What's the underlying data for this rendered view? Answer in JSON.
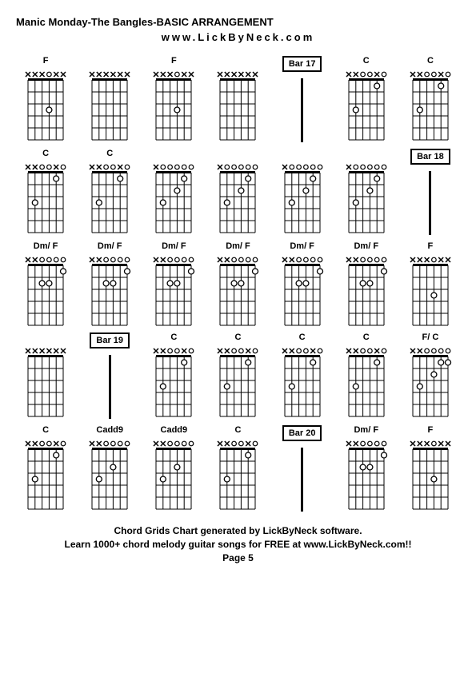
{
  "title": "Manic Monday-The Bangles-BASIC ARRANGEMENT",
  "subtitle": "www.LickByNeck.com",
  "footer_line1": "Chord Grids Chart generated by LickByNeck software.",
  "footer_line2": "Learn 1000+ chord melody guitar songs for FREE at www.LickByNeck.com!!",
  "page": "Page 5",
  "gridCols": 7,
  "diagram": {
    "width": 60,
    "height": 90,
    "strings": 6,
    "frets": 5,
    "topMargin": 14,
    "leftMargin": 8,
    "stringSpacing": 8.8,
    "fretSpacing": 15,
    "markerRadius": 3.5,
    "openRadius": 2.8,
    "strokeColor": "#000000",
    "fillOpen": "#ffffff"
  },
  "cells": [
    {
      "type": "chord",
      "label": "F",
      "markers": [
        "x",
        "x",
        "x",
        [
          1,
          1
        ],
        "x",
        "x"
      ],
      "dots": [
        [
          4,
          3
        ]
      ]
    },
    {
      "type": "chord",
      "label": "",
      "markers": [
        "x",
        "x",
        "x",
        "x",
        "x",
        "x"
      ],
      "dots": []
    },
    {
      "type": "chord",
      "label": "F",
      "markers": [
        "x",
        "x",
        "x",
        [
          1,
          1
        ],
        "x",
        "x"
      ],
      "dots": [
        [
          4,
          3
        ]
      ]
    },
    {
      "type": "chord",
      "label": "",
      "markers": [
        "x",
        "x",
        "x",
        "x",
        "x",
        "x"
      ],
      "dots": []
    },
    {
      "type": "bar",
      "label": "Bar 17"
    },
    {
      "type": "chord",
      "label": "C",
      "markers": [
        "x",
        "x",
        "o",
        "o",
        "x",
        "o"
      ],
      "dots": [
        [
          2,
          3
        ],
        [
          5,
          1
        ]
      ]
    },
    {
      "type": "chord",
      "label": "C",
      "markers": [
        "x",
        "x",
        "o",
        "o",
        "x",
        "o"
      ],
      "dots": [
        [
          2,
          3
        ],
        [
          5,
          1
        ]
      ]
    },
    {
      "type": "chord",
      "label": "C",
      "markers": [
        "x",
        "x",
        "o",
        "o",
        "x",
        "o"
      ],
      "dots": [
        [
          2,
          3
        ],
        [
          5,
          1
        ]
      ]
    },
    {
      "type": "chord",
      "label": "C",
      "markers": [
        "x",
        "x",
        "o",
        "o",
        "x",
        "o"
      ],
      "dots": [
        [
          2,
          3
        ],
        [
          5,
          1
        ]
      ]
    },
    {
      "type": "chord",
      "label": "",
      "markers": [
        "x",
        "o",
        "o",
        "o",
        "o",
        "o"
      ],
      "dots": [
        [
          2,
          3
        ],
        [
          4,
          2
        ],
        [
          5,
          1
        ]
      ]
    },
    {
      "type": "chord",
      "label": "",
      "markers": [
        "x",
        "o",
        "o",
        "o",
        "o",
        "o"
      ],
      "dots": [
        [
          2,
          3
        ],
        [
          4,
          2
        ],
        [
          5,
          1
        ]
      ]
    },
    {
      "type": "chord",
      "label": "",
      "markers": [
        "x",
        "o",
        "o",
        "o",
        "o",
        "o"
      ],
      "dots": [
        [
          2,
          3
        ],
        [
          4,
          2
        ],
        [
          5,
          1
        ]
      ]
    },
    {
      "type": "chord",
      "label": "",
      "markers": [
        "x",
        "o",
        "o",
        "o",
        "o",
        "o"
      ],
      "dots": [
        [
          2,
          3
        ],
        [
          4,
          2
        ],
        [
          5,
          1
        ]
      ]
    },
    {
      "type": "bar",
      "label": "Bar 18"
    },
    {
      "type": "chord",
      "label": "Dm/ F",
      "markers": [
        "x",
        "x",
        "o",
        "o",
        "o",
        "o"
      ],
      "dots": [
        [
          3,
          2
        ],
        [
          4,
          2
        ],
        [
          6,
          1
        ]
      ]
    },
    {
      "type": "chord",
      "label": "Dm/ F",
      "markers": [
        "x",
        "x",
        "o",
        "o",
        "o",
        "o"
      ],
      "dots": [
        [
          3,
          2
        ],
        [
          4,
          2
        ],
        [
          6,
          1
        ]
      ]
    },
    {
      "type": "chord",
      "label": "Dm/ F",
      "markers": [
        "x",
        "x",
        "o",
        "o",
        "o",
        "o"
      ],
      "dots": [
        [
          3,
          2
        ],
        [
          4,
          2
        ],
        [
          6,
          1
        ]
      ]
    },
    {
      "type": "chord",
      "label": "Dm/ F",
      "markers": [
        "x",
        "x",
        "o",
        "o",
        "o",
        "o"
      ],
      "dots": [
        [
          3,
          2
        ],
        [
          4,
          2
        ],
        [
          6,
          1
        ]
      ]
    },
    {
      "type": "chord",
      "label": "Dm/ F",
      "markers": [
        "x",
        "x",
        "o",
        "o",
        "o",
        "o"
      ],
      "dots": [
        [
          3,
          2
        ],
        [
          4,
          2
        ],
        [
          6,
          1
        ]
      ]
    },
    {
      "type": "chord",
      "label": "Dm/ F",
      "markers": [
        "x",
        "x",
        "o",
        "o",
        "o",
        "o"
      ],
      "dots": [
        [
          3,
          2
        ],
        [
          4,
          2
        ],
        [
          6,
          1
        ]
      ]
    },
    {
      "type": "chord",
      "label": "F",
      "markers": [
        "x",
        "x",
        "x",
        [
          1,
          1
        ],
        "x",
        "x"
      ],
      "dots": [
        [
          4,
          3
        ]
      ]
    },
    {
      "type": "chord",
      "label": "",
      "markers": [
        "x",
        "x",
        "x",
        "x",
        "x",
        "x"
      ],
      "dots": []
    },
    {
      "type": "bar",
      "label": "Bar 19"
    },
    {
      "type": "chord",
      "label": "C",
      "markers": [
        "x",
        "x",
        "o",
        "o",
        "x",
        "o"
      ],
      "dots": [
        [
          2,
          3
        ],
        [
          5,
          1
        ]
      ]
    },
    {
      "type": "chord",
      "label": "C",
      "markers": [
        "x",
        "x",
        "o",
        "o",
        "x",
        "o"
      ],
      "dots": [
        [
          2,
          3
        ],
        [
          5,
          1
        ]
      ]
    },
    {
      "type": "chord",
      "label": "C",
      "markers": [
        "x",
        "x",
        "o",
        "o",
        "x",
        "o"
      ],
      "dots": [
        [
          2,
          3
        ],
        [
          5,
          1
        ]
      ]
    },
    {
      "type": "chord",
      "label": "C",
      "markers": [
        "x",
        "x",
        "o",
        "o",
        "x",
        "o"
      ],
      "dots": [
        [
          2,
          3
        ],
        [
          5,
          1
        ]
      ]
    },
    {
      "type": "chord",
      "label": "F/ C",
      "markers": [
        "x",
        "x",
        "o",
        "o",
        "o",
        "o"
      ],
      "dots": [
        [
          2,
          3
        ],
        [
          4,
          2
        ],
        [
          5,
          1
        ],
        [
          6,
          1
        ]
      ]
    },
    {
      "type": "chord",
      "label": "C",
      "markers": [
        "x",
        "x",
        "o",
        "o",
        "x",
        "o"
      ],
      "dots": [
        [
          2,
          3
        ],
        [
          5,
          1
        ]
      ]
    },
    {
      "type": "chord",
      "label": "Cadd9",
      "markers": [
        "x",
        "x",
        "o",
        "o",
        "o",
        "o"
      ],
      "dots": [
        [
          2,
          3
        ],
        [
          4,
          2
        ]
      ]
    },
    {
      "type": "chord",
      "label": "Cadd9",
      "markers": [
        "x",
        "x",
        "o",
        "o",
        "o",
        "o"
      ],
      "dots": [
        [
          2,
          3
        ],
        [
          4,
          2
        ]
      ]
    },
    {
      "type": "chord",
      "label": "C",
      "markers": [
        "x",
        "x",
        "o",
        "o",
        "x",
        "o"
      ],
      "dots": [
        [
          2,
          3
        ],
        [
          5,
          1
        ]
      ]
    },
    {
      "type": "bar",
      "label": "Bar 20"
    },
    {
      "type": "chord",
      "label": "Dm/ F",
      "markers": [
        "x",
        "x",
        "o",
        "o",
        "o",
        "o"
      ],
      "dots": [
        [
          3,
          2
        ],
        [
          4,
          2
        ],
        [
          6,
          1
        ]
      ]
    },
    {
      "type": "chord",
      "label": "F",
      "markers": [
        "x",
        "x",
        "x",
        [
          1,
          1
        ],
        "x",
        "x"
      ],
      "dots": [
        [
          4,
          3
        ]
      ]
    }
  ]
}
